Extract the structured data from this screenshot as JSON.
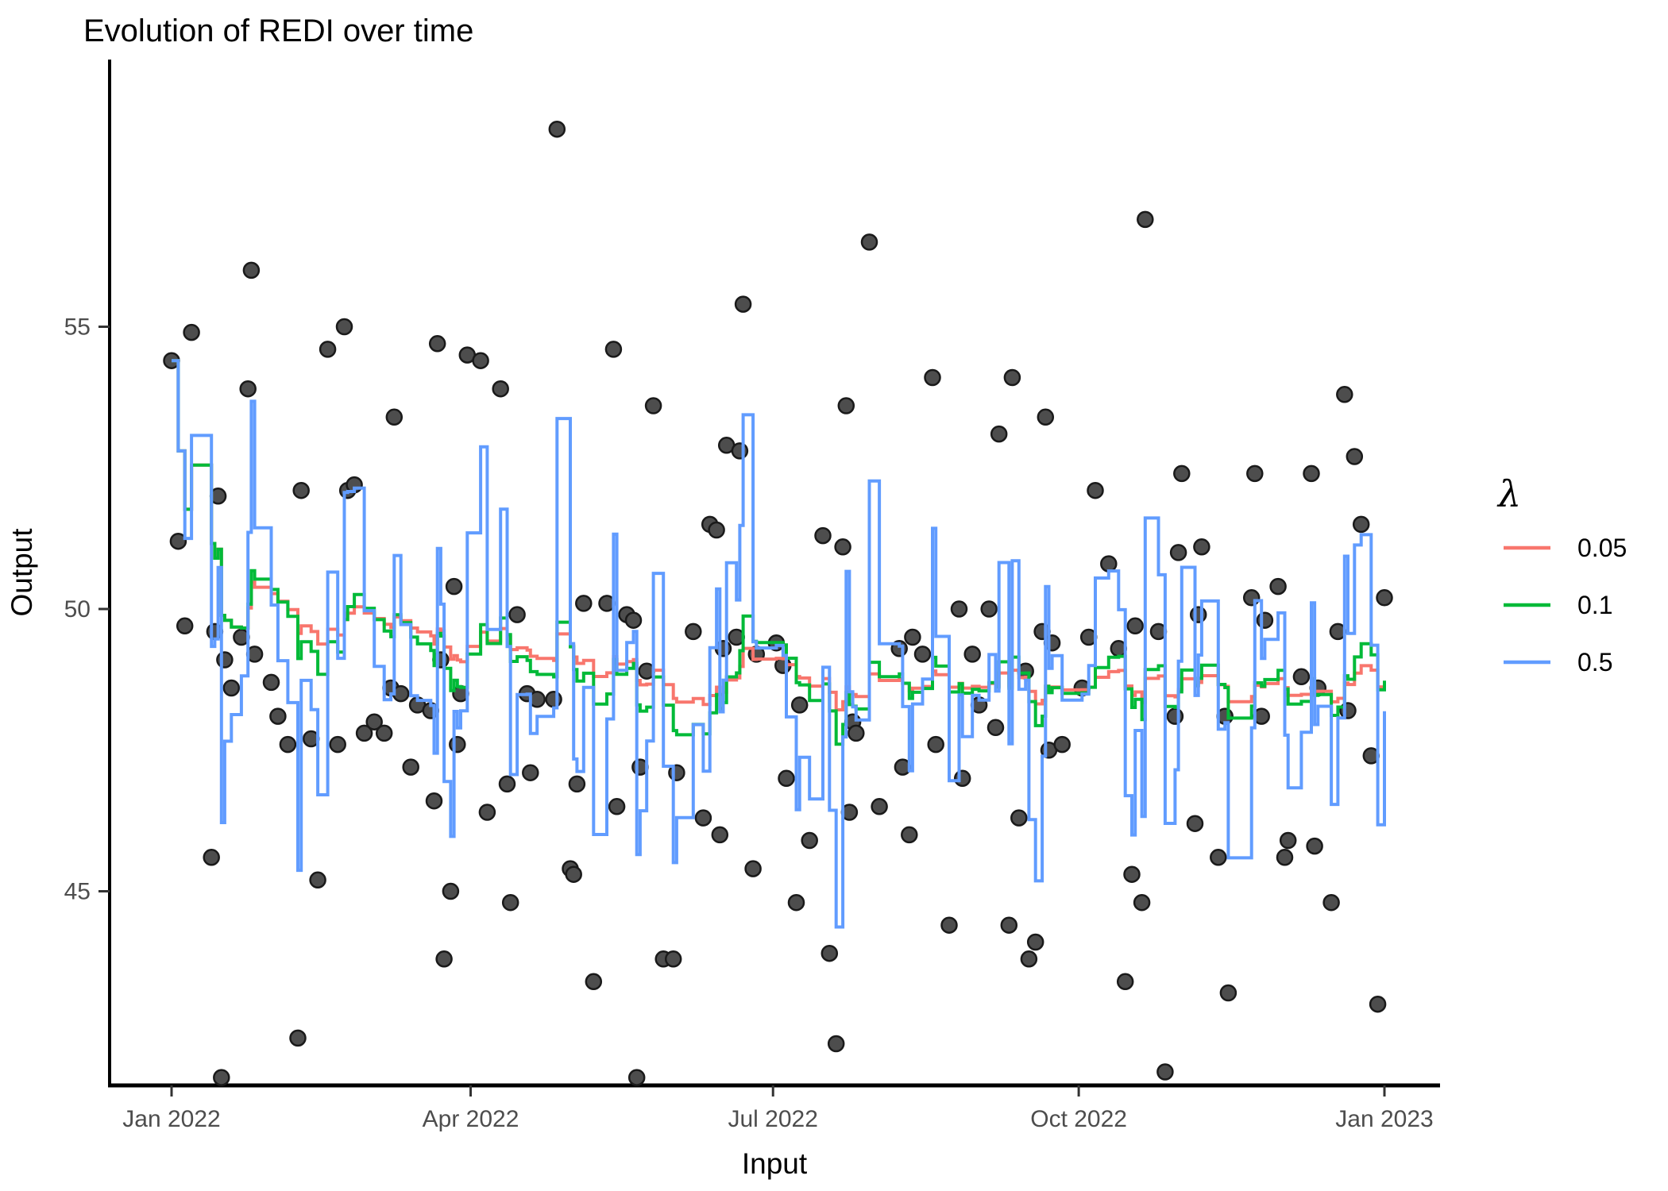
{
  "title": "Evolution of REDI over time",
  "legend": {
    "title": "λ",
    "entries": [
      {
        "label": "0.05",
        "lambda": 0.05,
        "color": "#F8766D"
      },
      {
        "label": "0.1",
        "lambda": 0.1,
        "color": "#00BA38"
      },
      {
        "label": "0.5",
        "lambda": 0.5,
        "color": "#619CFF"
      }
    ]
  },
  "chart_data": {
    "type": "scatter+line",
    "title": "Evolution of REDI over time",
    "xlabel": "Input",
    "ylabel": "Output",
    "legend_position": "right",
    "grid": false,
    "background": "#ffffff",
    "point_color": "#4d4d4d",
    "point_stroke": "#1a1a1a",
    "axis_color": "#000000",
    "tick_color": "#333333",
    "tick_text_color": "#4d4d4d",
    "x_unit": "days since 2022-01-01",
    "x_ticks": [
      {
        "label": "Jan 2022",
        "day": 0
      },
      {
        "label": "Apr 2022",
        "day": 90
      },
      {
        "label": "Jul 2022",
        "day": 181
      },
      {
        "label": "Oct 2022",
        "day": 273
      },
      {
        "label": "Jan 2023",
        "day": 365
      }
    ],
    "y_ticks": [
      {
        "label": "45",
        "value": 45
      },
      {
        "label": "50",
        "value": 50
      },
      {
        "label": "55",
        "value": 55
      }
    ],
    "x_range_days": [
      -18.7,
      381.8
    ],
    "y_range": [
      41.6,
      59.7
    ],
    "series": [
      {
        "name": "0.05",
        "lambda": 0.05,
        "color": "#F8766D",
        "width": 4,
        "method": "REDI: expanding-mean burn-in then EWMA, alpha_i = max(lambda, 1/i), step-after interpolation at observation times"
      },
      {
        "name": "0.1",
        "lambda": 0.1,
        "color": "#00BA38",
        "width": 4,
        "method": "REDI: expanding-mean burn-in then EWMA, alpha_i = max(lambda, 1/i), step-after interpolation at observation times"
      },
      {
        "name": "0.5",
        "lambda": 0.5,
        "color": "#619CFF",
        "width": 4,
        "method": "REDI: expanding-mean burn-in then EWMA, alpha_i = max(lambda, 1/i), step-after interpolation at observation times"
      }
    ],
    "observations": [
      [
        0,
        54.4
      ],
      [
        2,
        51.2
      ],
      [
        4,
        49.7
      ],
      [
        6,
        54.9
      ],
      [
        12,
        45.6
      ],
      [
        13,
        49.6
      ],
      [
        14,
        52.0
      ],
      [
        15,
        41.7
      ],
      [
        16,
        49.1
      ],
      [
        18,
        48.6
      ],
      [
        21,
        49.5
      ],
      [
        23,
        53.9
      ],
      [
        24,
        56.0
      ],
      [
        25,
        49.2
      ],
      [
        30,
        48.7
      ],
      [
        32,
        48.1
      ],
      [
        35,
        47.6
      ],
      [
        38,
        42.4
      ],
      [
        39,
        52.1
      ],
      [
        42,
        47.7
      ],
      [
        44,
        45.2
      ],
      [
        47,
        54.6
      ],
      [
        50,
        47.6
      ],
      [
        52,
        55.0
      ],
      [
        53,
        52.1
      ],
      [
        55,
        52.2
      ],
      [
        58,
        47.8
      ],
      [
        61,
        48.0
      ],
      [
        64,
        47.8
      ],
      [
        66,
        48.6
      ],
      [
        67,
        53.4
      ],
      [
        69,
        48.5
      ],
      [
        72,
        47.2
      ],
      [
        74,
        48.3
      ],
      [
        78,
        48.2
      ],
      [
        79,
        46.6
      ],
      [
        80,
        54.7
      ],
      [
        81,
        49.1
      ],
      [
        82,
        43.8
      ],
      [
        84,
        45.0
      ],
      [
        85,
        50.4
      ],
      [
        86,
        47.6
      ],
      [
        87,
        48.5
      ],
      [
        89,
        54.5
      ],
      [
        93,
        54.4
      ],
      [
        95,
        46.4
      ],
      [
        99,
        53.9
      ],
      [
        101,
        46.9
      ],
      [
        102,
        44.8
      ],
      [
        104,
        49.9
      ],
      [
        107,
        48.5
      ],
      [
        108,
        47.1
      ],
      [
        110,
        48.4
      ],
      [
        115,
        48.4
      ],
      [
        116,
        58.5
      ],
      [
        120,
        45.4
      ],
      [
        121,
        45.3
      ],
      [
        122,
        46.9
      ],
      [
        124,
        50.1
      ],
      [
        127,
        43.4
      ],
      [
        131,
        50.1
      ],
      [
        133,
        54.6
      ],
      [
        134,
        46.5
      ],
      [
        137,
        49.9
      ],
      [
        139,
        49.8
      ],
      [
        140,
        41.7
      ],
      [
        141,
        47.2
      ],
      [
        143,
        48.9
      ],
      [
        145,
        53.6
      ],
      [
        148,
        43.8
      ],
      [
        151,
        43.8
      ],
      [
        152,
        47.1
      ],
      [
        157,
        49.6
      ],
      [
        160,
        46.3
      ],
      [
        162,
        51.5
      ],
      [
        164,
        51.4
      ],
      [
        165,
        46.0
      ],
      [
        166,
        49.3
      ],
      [
        167,
        52.9
      ],
      [
        170,
        49.5
      ],
      [
        171,
        52.8
      ],
      [
        172,
        55.4
      ],
      [
        175,
        45.4
      ],
      [
        176,
        49.2
      ],
      [
        182,
        49.4
      ],
      [
        184,
        49.0
      ],
      [
        185,
        47.0
      ],
      [
        188,
        44.8
      ],
      [
        189,
        48.3
      ],
      [
        192,
        45.9
      ],
      [
        196,
        51.3
      ],
      [
        198,
        43.9
      ],
      [
        200,
        42.3
      ],
      [
        202,
        51.1
      ],
      [
        203,
        53.6
      ],
      [
        204,
        46.4
      ],
      [
        205,
        48.0
      ],
      [
        206,
        47.8
      ],
      [
        210,
        56.5
      ],
      [
        213,
        46.5
      ],
      [
        219,
        49.3
      ],
      [
        220,
        47.2
      ],
      [
        222,
        46.0
      ],
      [
        223,
        49.5
      ],
      [
        226,
        49.2
      ],
      [
        229,
        54.1
      ],
      [
        230,
        47.6
      ],
      [
        234,
        44.4
      ],
      [
        237,
        50.0
      ],
      [
        238,
        47.0
      ],
      [
        241,
        49.2
      ],
      [
        243,
        48.3
      ],
      [
        246,
        50.0
      ],
      [
        248,
        47.9
      ],
      [
        249,
        53.1
      ],
      [
        252,
        44.4
      ],
      [
        253,
        54.1
      ],
      [
        255,
        46.3
      ],
      [
        257,
        48.9
      ],
      [
        258,
        43.8
      ],
      [
        260,
        44.1
      ],
      [
        262,
        49.6
      ],
      [
        263,
        53.4
      ],
      [
        264,
        47.5
      ],
      [
        265,
        49.4
      ],
      [
        268,
        47.6
      ],
      [
        274,
        48.6
      ],
      [
        276,
        49.5
      ],
      [
        278,
        52.1
      ],
      [
        282,
        50.8
      ],
      [
        285,
        49.3
      ],
      [
        287,
        43.4
      ],
      [
        289,
        45.3
      ],
      [
        290,
        49.7
      ],
      [
        292,
        44.8
      ],
      [
        293,
        56.9
      ],
      [
        297,
        49.6
      ],
      [
        299,
        41.8
      ],
      [
        302,
        48.1
      ],
      [
        303,
        51.0
      ],
      [
        304,
        52.4
      ],
      [
        308,
        46.2
      ],
      [
        309,
        49.9
      ],
      [
        310,
        51.1
      ],
      [
        315,
        45.6
      ],
      [
        317,
        48.1
      ],
      [
        318,
        43.2
      ],
      [
        325,
        50.2
      ],
      [
        326,
        52.4
      ],
      [
        328,
        48.1
      ],
      [
        329,
        49.8
      ],
      [
        333,
        50.4
      ],
      [
        335,
        45.6
      ],
      [
        336,
        45.9
      ],
      [
        340,
        48.8
      ],
      [
        343,
        52.4
      ],
      [
        344,
        45.8
      ],
      [
        345,
        48.6
      ],
      [
        349,
        44.8
      ],
      [
        351,
        49.6
      ],
      [
        353,
        53.8
      ],
      [
        354,
        48.2
      ],
      [
        356,
        52.7
      ],
      [
        358,
        51.5
      ],
      [
        361,
        47.4
      ],
      [
        363,
        43.0
      ],
      [
        365,
        50.2
      ]
    ]
  }
}
